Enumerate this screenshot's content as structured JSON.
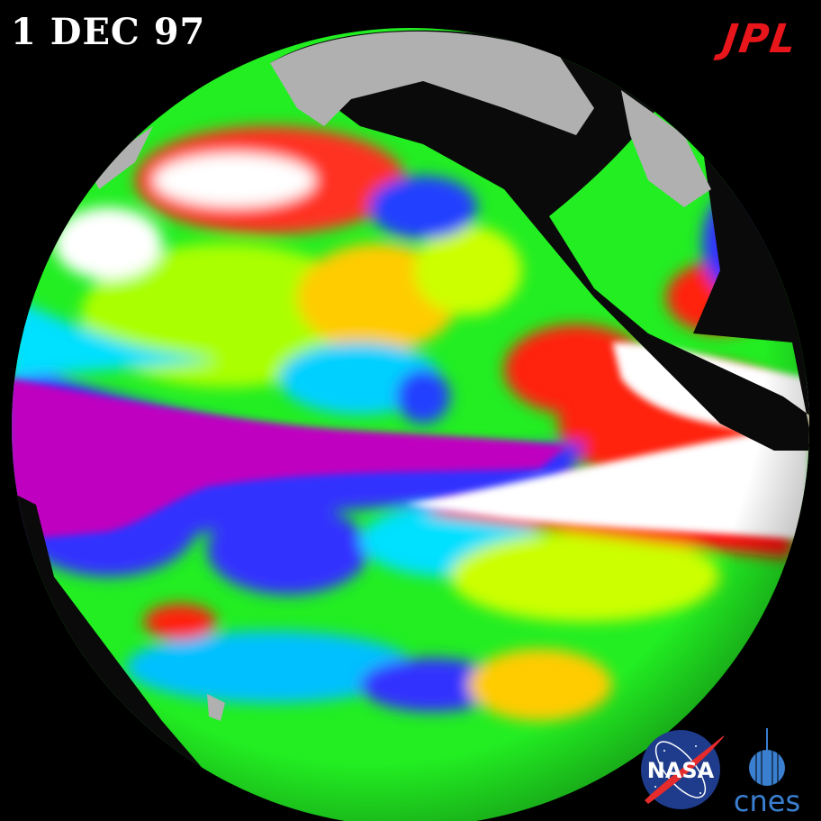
{
  "date_label": "1 DEC 97",
  "logos": {
    "jpl": "JPL",
    "nasa": "NASA",
    "cnes": "cnes"
  },
  "colors": {
    "background": "#000000",
    "land_shadow": "#0a0a0a",
    "land_lit": "#b0b0b0",
    "jpl": "#e8161b",
    "nasa_blue": "#1f3c8c",
    "cnes_blue": "#3a7fd0"
  },
  "color_scale": [
    "#c000c0",
    "#3030ff",
    "#00e0ff",
    "#00f000",
    "#ffff00",
    "#ff8000",
    "#ff0000",
    "#ffffff"
  ]
}
